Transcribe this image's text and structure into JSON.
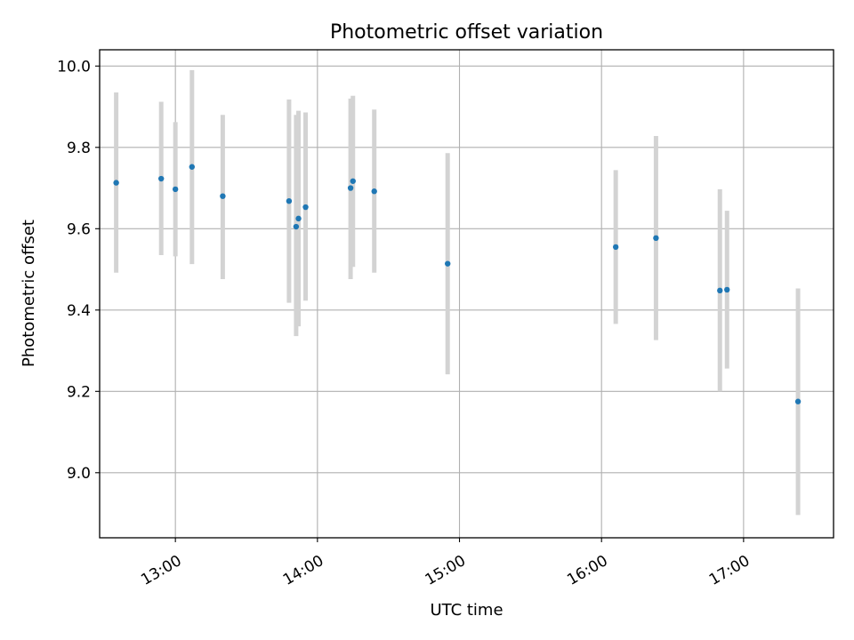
{
  "chart_data": {
    "type": "scatter",
    "title": "Photometric offset variation",
    "xlabel": "UTC time",
    "ylabel": "Photometric offset",
    "xlim": [
      "12:28",
      "17:38"
    ],
    "ylim": [
      8.84,
      10.04
    ],
    "x_ticks": [
      "13:00",
      "14:00",
      "15:00",
      "16:00",
      "17:00"
    ],
    "y_ticks": [
      "9.0",
      "9.2",
      "9.4",
      "9.6",
      "9.8",
      "10.0"
    ],
    "grid": true,
    "marker_color": "#1f77b4",
    "errorbar_color": "#d3d3d3",
    "points": [
      {
        "time": "12:35",
        "y": 9.713,
        "lo": 9.492,
        "hi": 9.935
      },
      {
        "time": "12:54",
        "y": 9.723,
        "lo": 9.535,
        "hi": 9.912
      },
      {
        "time": "13:00",
        "y": 9.697,
        "lo": 9.532,
        "hi": 9.862
      },
      {
        "time": "13:07",
        "y": 9.752,
        "lo": 9.513,
        "hi": 9.99
      },
      {
        "time": "13:20",
        "y": 9.68,
        "lo": 9.476,
        "hi": 9.88
      },
      {
        "time": "13:48",
        "y": 9.668,
        "lo": 9.418,
        "hi": 9.918
      },
      {
        "time": "13:51",
        "y": 9.605,
        "lo": 9.336,
        "hi": 9.88
      },
      {
        "time": "13:52",
        "y": 9.625,
        "lo": 9.36,
        "hi": 9.89
      },
      {
        "time": "13:55",
        "y": 9.653,
        "lo": 9.423,
        "hi": 9.886
      },
      {
        "time": "14:14",
        "y": 9.7,
        "lo": 9.476,
        "hi": 9.92
      },
      {
        "time": "14:15",
        "y": 9.717,
        "lo": 9.506,
        "hi": 9.927
      },
      {
        "time": "14:24",
        "y": 9.692,
        "lo": 9.492,
        "hi": 9.893
      },
      {
        "time": "14:55",
        "y": 9.514,
        "lo": 9.242,
        "hi": 9.786
      },
      {
        "time": "16:06",
        "y": 9.555,
        "lo": 9.366,
        "hi": 9.744
      },
      {
        "time": "16:23",
        "y": 9.577,
        "lo": 9.326,
        "hi": 9.828
      },
      {
        "time": "16:50",
        "y": 9.448,
        "lo": 9.2,
        "hi": 9.697
      },
      {
        "time": "16:53",
        "y": 9.45,
        "lo": 9.256,
        "hi": 9.644
      },
      {
        "time": "17:23",
        "y": 9.175,
        "lo": 8.896,
        "hi": 9.453
      }
    ]
  }
}
